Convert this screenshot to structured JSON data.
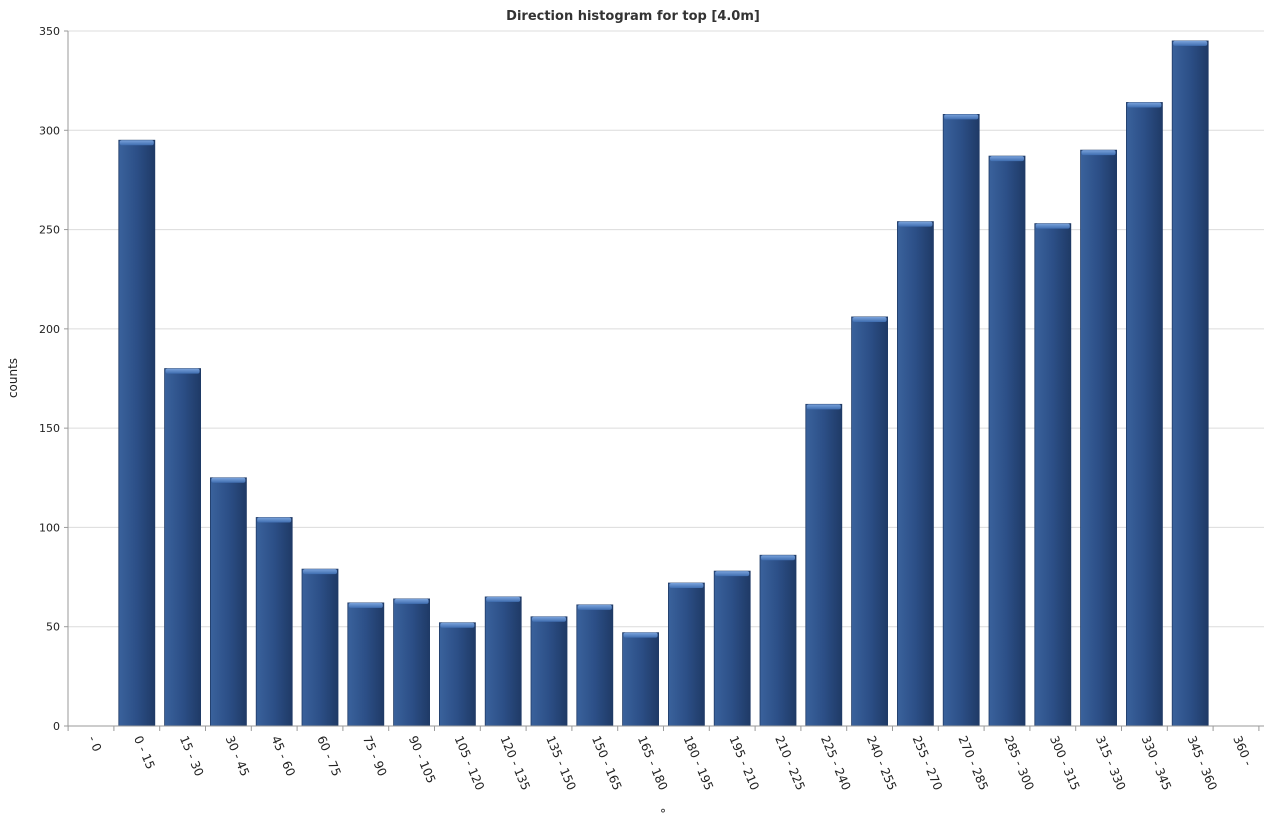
{
  "chart_data": {
    "type": "bar",
    "title": "Direction histogram for top [4.0m]",
    "xlabel": "°",
    "ylabel": "counts",
    "ylim": [
      0,
      350
    ],
    "yticks": [
      0,
      50,
      100,
      150,
      200,
      250,
      300,
      350
    ],
    "grid": true,
    "x_slots": [
      "- 0",
      "0 - 15",
      "15 - 30",
      "30 - 45",
      "45 - 60",
      "60 - 75",
      "75 - 90",
      "90 - 105",
      "105 - 120",
      "120 - 135",
      "135 - 150",
      "150 - 165",
      "165 - 180",
      "180 - 195",
      "195 - 210",
      "210 - 225",
      "225 - 240",
      "240 - 255",
      "255 - 270",
      "270 - 285",
      "285 - 300",
      "300 - 315",
      "315 - 330",
      "330 - 345",
      "345 - 360",
      "360 -"
    ],
    "categories": [
      "0 - 15",
      "15 - 30",
      "30 - 45",
      "45 - 60",
      "60 - 75",
      "75 - 90",
      "90 - 105",
      "105 - 120",
      "120 - 135",
      "135 - 150",
      "150 - 165",
      "165 - 180",
      "180 - 195",
      "195 - 210",
      "210 - 225",
      "225 - 240",
      "240 - 255",
      "255 - 270",
      "270 - 285",
      "285 - 300",
      "300 - 315",
      "315 - 330",
      "330 - 345",
      "345 - 360"
    ],
    "values": [
      295,
      180,
      125,
      105,
      79,
      62,
      64,
      52,
      65,
      55,
      61,
      47,
      72,
      78,
      86,
      162,
      206,
      254,
      308,
      287,
      253,
      290,
      314,
      345
    ],
    "colors": {
      "bar": "#2e5289",
      "bar_top": "#5b87c9",
      "bar_edge": "#1f3a66"
    }
  }
}
